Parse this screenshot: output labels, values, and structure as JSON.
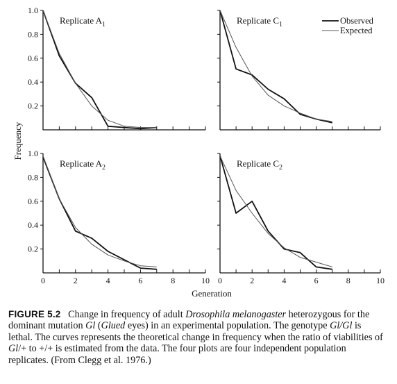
{
  "chart_data": {
    "type": "line",
    "ylabel": "Frequency",
    "xlabel": "Generation",
    "legend": {
      "placement": "top-right",
      "entries": [
        "Observed",
        "Expected"
      ]
    },
    "yticks": [
      "0.2",
      "0.4",
      "0.6",
      "0.8",
      "1.0"
    ],
    "xticks": [
      "0",
      "2",
      "4",
      "6",
      "8",
      "10"
    ],
    "ylim": [
      0,
      1.0
    ],
    "xlim": [
      0,
      10
    ],
    "panels": [
      {
        "title": "Replicate A1",
        "series": [
          {
            "name": "Observed",
            "x": [
              0,
              1,
              2,
              3,
              4,
              5,
              6,
              7
            ],
            "y": [
              1.0,
              0.62,
              0.39,
              0.27,
              0.03,
              0.02,
              0.01,
              0.02
            ]
          },
          {
            "name": "Expected",
            "x": [
              0,
              1,
              2,
              3,
              4,
              5,
              6,
              7
            ],
            "y": [
              1.0,
              0.64,
              0.39,
              0.2,
              0.08,
              0.03,
              0.02,
              0.02
            ]
          }
        ]
      },
      {
        "title": "Replicate C1",
        "series": [
          {
            "name": "Observed",
            "x": [
              0,
              1,
              2,
              3,
              4,
              5,
              6,
              7
            ],
            "y": [
              1.0,
              0.51,
              0.46,
              0.34,
              0.26,
              0.13,
              0.09,
              0.06
            ]
          },
          {
            "name": "Expected",
            "x": [
              0,
              1,
              2,
              3,
              4,
              5,
              6,
              7
            ],
            "y": [
              1.0,
              0.69,
              0.45,
              0.29,
              0.2,
              0.14,
              0.09,
              0.07
            ]
          }
        ]
      },
      {
        "title": "Replicate A2",
        "series": [
          {
            "name": "Observed",
            "x": [
              0,
              1,
              2,
              3,
              4,
              5,
              6,
              7
            ],
            "y": [
              0.97,
              0.62,
              0.35,
              0.29,
              0.18,
              0.11,
              0.04,
              0.03
            ]
          },
          {
            "name": "Expected",
            "x": [
              0,
              1,
              2,
              3,
              4,
              5,
              6,
              7
            ],
            "y": [
              0.98,
              0.62,
              0.38,
              0.24,
              0.15,
              0.1,
              0.06,
              0.05
            ]
          }
        ]
      },
      {
        "title": "Replicate C2",
        "series": [
          {
            "name": "Observed",
            "x": [
              0,
              1,
              2,
              3,
              4,
              5,
              6,
              7
            ],
            "y": [
              0.98,
              0.5,
              0.6,
              0.35,
              0.2,
              0.17,
              0.05,
              0.03
            ]
          },
          {
            "name": "Expected",
            "x": [
              0,
              1,
              2,
              3,
              4,
              5,
              6,
              7
            ],
            "y": [
              0.98,
              0.69,
              0.5,
              0.33,
              0.21,
              0.13,
              0.09,
              0.05
            ]
          }
        ]
      }
    ]
  },
  "caption": {
    "number": "FIGURE 5.2",
    "pre": "Change in frequency of adult ",
    "species": "Drosophila melanogaster",
    "mid1": " heterozygous for the dominant mutation ",
    "gene": "Gl",
    "mid2": " (",
    "eyes": "Glued",
    "mid3": " eyes) in an experimental population. The genotype ",
    "lethal_genotype": "Gl/Gl",
    "mid4": " is lethal. The curves represents the theoretical change in frequency when the ratio of viabilities of ",
    "het": "Gl",
    "mid5": "/+ to +/+ is estimated from the data. The four plots are four independent population replicates. (From Clegg et al. 1976.)"
  }
}
